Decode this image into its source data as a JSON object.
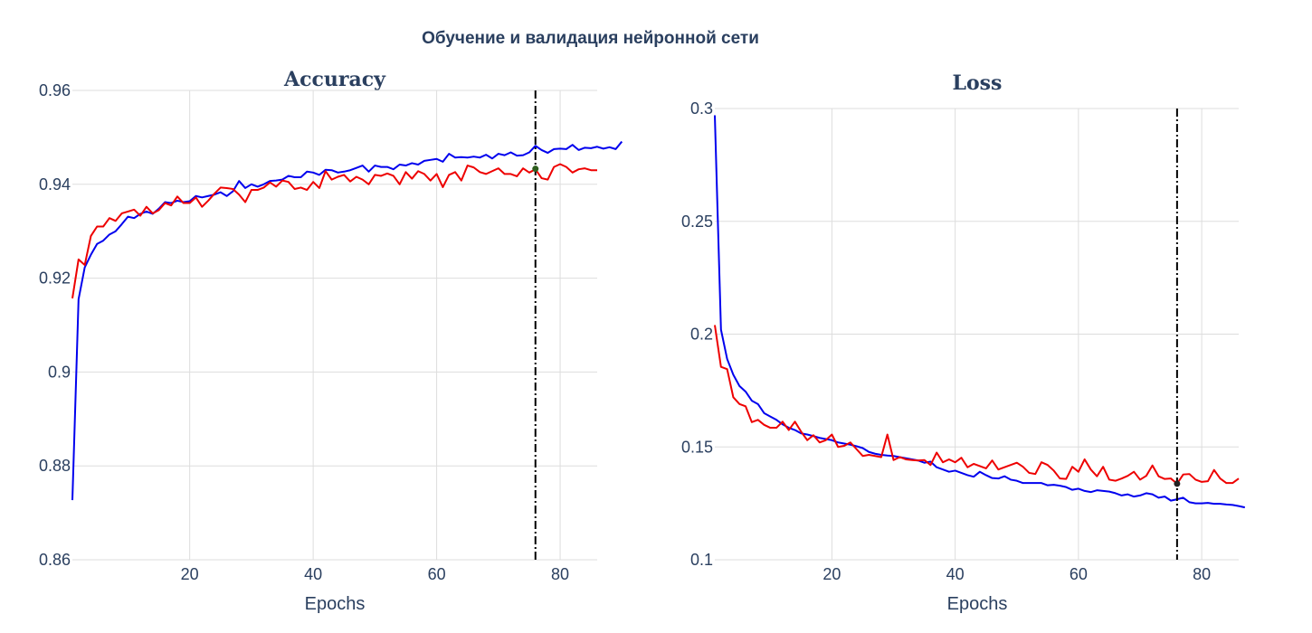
{
  "title": "Обучение и валидация нейронной сети",
  "colors": {
    "train": "#0000ee",
    "val": "#ee0000",
    "vline": "#000000",
    "marker_acc": "#2e5e1e",
    "marker_loss": "#222222"
  },
  "chart_data": [
    {
      "type": "line",
      "title": "Accuracy",
      "xlabel": "Epochs",
      "ylabel": "",
      "xlim": [
        1,
        86
      ],
      "ylim": [
        0.86,
        0.96
      ],
      "xticks": [
        20,
        40,
        60,
        80
      ],
      "xtick_labels": [
        "20",
        "40",
        "60",
        "80"
      ],
      "yticks": [
        0.86,
        0.88,
        0.9,
        0.92,
        0.94,
        0.96
      ],
      "ytick_labels": [
        "0.86",
        "0.88",
        "0.9",
        "0.92",
        "0.94",
        "0.96"
      ],
      "grid": true,
      "vline_x": 76,
      "marker": {
        "x": 76,
        "y": 0.9433
      },
      "series": [
        {
          "color": "#0000ee",
          "values": [
            0.8727,
            0.9155,
            0.9223,
            0.925,
            0.9273,
            0.928,
            0.9293,
            0.93,
            0.9315,
            0.9331,
            0.9328,
            0.9337,
            0.9342,
            0.9337,
            0.9348,
            0.9362,
            0.936,
            0.9365,
            0.9362,
            0.9364,
            0.9375,
            0.9372,
            0.9375,
            0.9378,
            0.9383,
            0.9375,
            0.9385,
            0.9407,
            0.9392,
            0.94,
            0.9395,
            0.94,
            0.9407,
            0.9408,
            0.941,
            0.9418,
            0.9415,
            0.9415,
            0.9427,
            0.9425,
            0.942,
            0.9431,
            0.943,
            0.9425,
            0.9427,
            0.943,
            0.9435,
            0.944,
            0.9427,
            0.944,
            0.9437,
            0.9437,
            0.9432,
            0.9442,
            0.944,
            0.9445,
            0.9442,
            0.945,
            0.9452,
            0.9454,
            0.9448,
            0.9465,
            0.9457,
            0.9458,
            0.9457,
            0.9459,
            0.9457,
            0.9463,
            0.9455,
            0.9465,
            0.9462,
            0.9468,
            0.9461,
            0.9462,
            0.9468,
            0.9482,
            0.9473,
            0.9467,
            0.9475,
            0.9476,
            0.9475,
            0.9484,
            0.9473,
            0.9478,
            0.9477,
            0.948,
            0.9476,
            0.9479,
            0.9475,
            0.9491
          ]
        },
        {
          "color": "#ee0000",
          "values": [
            0.9157,
            0.924,
            0.9228,
            0.929,
            0.931,
            0.931,
            0.9328,
            0.9322,
            0.9338,
            0.9342,
            0.9346,
            0.9333,
            0.9352,
            0.9338,
            0.9345,
            0.936,
            0.9355,
            0.9374,
            0.936,
            0.936,
            0.9372,
            0.9352,
            0.9365,
            0.938,
            0.9393,
            0.9392,
            0.939,
            0.9378,
            0.9362,
            0.9388,
            0.9388,
            0.9393,
            0.9404,
            0.9395,
            0.9408,
            0.9405,
            0.939,
            0.9393,
            0.9388,
            0.9405,
            0.9392,
            0.9428,
            0.941,
            0.9416,
            0.942,
            0.9406,
            0.9416,
            0.941,
            0.94,
            0.942,
            0.9418,
            0.9423,
            0.9418,
            0.94,
            0.9426,
            0.9412,
            0.9428,
            0.9422,
            0.9408,
            0.9422,
            0.9394,
            0.942,
            0.9426,
            0.9408,
            0.944,
            0.9436,
            0.9426,
            0.9422,
            0.9428,
            0.9434,
            0.9422,
            0.9422,
            0.9417,
            0.9434,
            0.9425,
            0.9432,
            0.9413,
            0.941,
            0.9437,
            0.9443,
            0.9437,
            0.9425,
            0.9432,
            0.9434,
            0.943,
            0.943
          ]
        }
      ]
    },
    {
      "type": "line",
      "title": "Loss",
      "xlabel": "Epochs",
      "ylabel": "",
      "xlim": [
        1,
        86
      ],
      "ylim": [
        0.1,
        0.3
      ],
      "xticks": [
        20,
        40,
        60,
        80
      ],
      "xtick_labels": [
        "20",
        "40",
        "60",
        "80"
      ],
      "yticks": [
        0.1,
        0.15,
        0.2,
        0.25,
        0.3
      ],
      "ytick_labels": [
        "0.1",
        "0.15",
        "0.2",
        "0.25",
        "0.3"
      ],
      "grid": true,
      "vline_x": 76,
      "marker": {
        "x": 76,
        "y": 0.1337
      },
      "series": [
        {
          "color": "#0000ee",
          "values": [
            0.297,
            0.202,
            0.189,
            0.182,
            0.177,
            0.1745,
            0.1705,
            0.169,
            0.165,
            0.1635,
            0.162,
            0.16,
            0.1585,
            0.1575,
            0.156,
            0.1555,
            0.1548,
            0.154,
            0.1535,
            0.153,
            0.152,
            0.1515,
            0.151,
            0.1503,
            0.1495,
            0.1478,
            0.147,
            0.1465,
            0.1462,
            0.146,
            0.1455,
            0.145,
            0.1445,
            0.144,
            0.143,
            0.1435,
            0.141,
            0.14,
            0.139,
            0.1395,
            0.1385,
            0.1375,
            0.1368,
            0.139,
            0.1375,
            0.1362,
            0.136,
            0.137,
            0.1355,
            0.135,
            0.134,
            0.134,
            0.134,
            0.134,
            0.133,
            0.1332,
            0.1328,
            0.1322,
            0.131,
            0.1315,
            0.1305,
            0.13,
            0.1308,
            0.1305,
            0.1302,
            0.1295,
            0.1285,
            0.129,
            0.128,
            0.1285,
            0.1295,
            0.129,
            0.1275,
            0.128,
            0.1262,
            0.1268,
            0.1275,
            0.1255,
            0.125,
            0.125,
            0.1252,
            0.1248,
            0.1248,
            0.1245,
            0.1243,
            0.1238,
            0.1232
          ]
        },
        {
          "color": "#ee0000",
          "values": [
            0.204,
            0.1855,
            0.1845,
            0.172,
            0.169,
            0.168,
            0.161,
            0.162,
            0.1598,
            0.1585,
            0.1585,
            0.1612,
            0.1575,
            0.1612,
            0.1568,
            0.153,
            0.1552,
            0.152,
            0.153,
            0.1555,
            0.15,
            0.1505,
            0.152,
            0.149,
            0.146,
            0.1465,
            0.146,
            0.1455,
            0.1555,
            0.1442,
            0.1455,
            0.1445,
            0.1442,
            0.144,
            0.1442,
            0.142,
            0.1475,
            0.1432,
            0.1445,
            0.1432,
            0.1452,
            0.141,
            0.1425,
            0.1415,
            0.1405,
            0.144,
            0.14,
            0.141,
            0.142,
            0.143,
            0.1412,
            0.1385,
            0.138,
            0.1432,
            0.142,
            0.1395,
            0.136,
            0.1358,
            0.1412,
            0.139,
            0.1445,
            0.14,
            0.137,
            0.1412,
            0.1355,
            0.135,
            0.136,
            0.1372,
            0.139,
            0.1355,
            0.1372,
            0.1418,
            0.137,
            0.1358,
            0.136,
            0.1337,
            0.1378,
            0.138,
            0.1355,
            0.1345,
            0.1348,
            0.1398,
            0.136,
            0.134,
            0.134,
            0.136
          ]
        }
      ]
    }
  ]
}
